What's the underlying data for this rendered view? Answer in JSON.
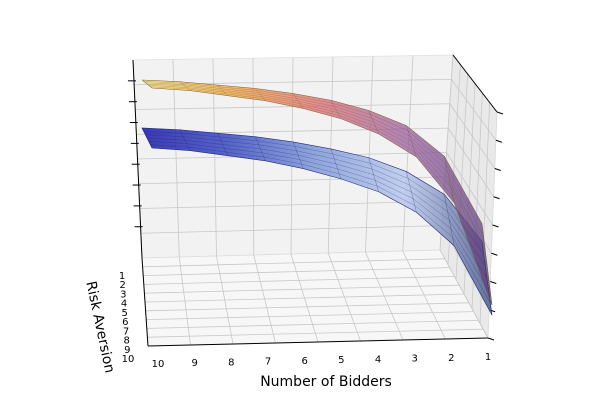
{
  "chart_data": {
    "type": "surface3d",
    "title": "",
    "xlabel": "Number of Bidders",
    "ylabel": "Risk Aversion",
    "zlabel": "",
    "x_ticks": [
      "10",
      "9",
      "8",
      "7",
      "6",
      "5",
      "4",
      "3",
      "2",
      "1"
    ],
    "y_ticks": [
      "1",
      "2",
      "3",
      "4",
      "5",
      "6",
      "7",
      "8",
      "9",
      "10"
    ],
    "xlim": [
      1,
      10
    ],
    "ylim": [
      1,
      10
    ],
    "grid": true,
    "view": "perspective from the side, high elevation",
    "series": [
      {
        "colormap": "plasma",
        "colors": [
          "#f6e27a",
          "#f3a53a",
          "#dd6b6d",
          "#9b5fa0",
          "#5a3f82"
        ],
        "x": [
          1,
          2,
          3,
          4,
          5,
          6,
          7,
          8,
          9,
          10
        ],
        "z": [
          0.05,
          0.45,
          0.63,
          0.72,
          0.78,
          0.82,
          0.85,
          0.87,
          0.89,
          0.9
        ]
      },
      {
        "colormap": "blues",
        "colors": [
          "#1a1aa8",
          "#3b4cc0",
          "#7f9ad8",
          "#b9c8ec",
          "#4b5a8c"
        ],
        "x": [
          1,
          2,
          3,
          4,
          5,
          6,
          7,
          8,
          9,
          10
        ],
        "z": [
          0.05,
          0.32,
          0.45,
          0.53,
          0.58,
          0.62,
          0.65,
          0.67,
          0.69,
          0.7
        ]
      }
    ]
  }
}
